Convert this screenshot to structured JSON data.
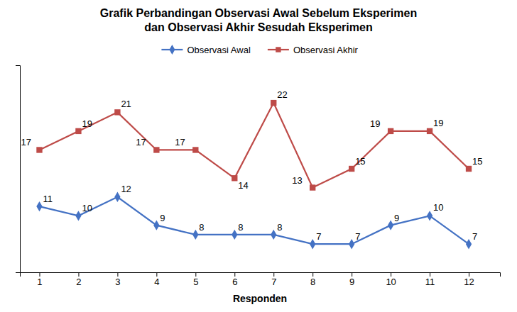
{
  "chart_data": {
    "type": "line",
    "title": "Grafik Perbandingan Observasi Awal Sebelum Eksperimen",
    "subtitle": "dan Observasi Akhir Sesudah Eksperimen",
    "x_label": "Responden",
    "x": [
      1,
      2,
      3,
      4,
      5,
      6,
      7,
      8,
      9,
      10,
      11,
      12
    ],
    "series": [
      {
        "name": "Observasi Awal",
        "color": "#4472C4",
        "marker": "diamond",
        "line_style": "solid",
        "values": [
          11,
          10,
          12,
          9,
          8,
          8,
          8,
          7,
          7,
          9,
          10,
          7
        ]
      },
      {
        "name": "Observasi Akhir",
        "color": "#BE4B48",
        "marker": "square",
        "line_style": "solid",
        "values": [
          17,
          19,
          21,
          17,
          17,
          14,
          22,
          13,
          15,
          19,
          19,
          15
        ]
      }
    ],
    "xlim": [
      0.5,
      12.8
    ],
    "xticks": [
      1,
      2,
      3,
      4,
      5,
      6,
      7,
      8,
      9,
      10,
      11,
      12
    ],
    "ylim": [
      4,
      26
    ],
    "grid": false,
    "legend": "upper center",
    "data_labels": true,
    "tick_labels": "x"
  }
}
